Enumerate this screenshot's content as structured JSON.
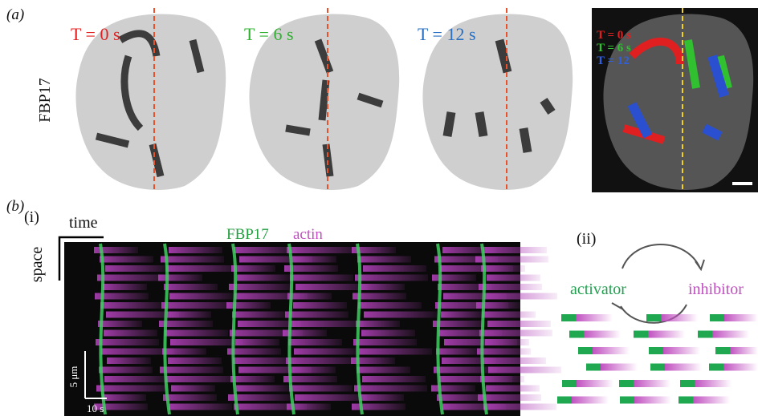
{
  "panel_a": {
    "label": "(a)",
    "row_label": "FBP17",
    "frames": [
      "T = 0 s",
      "T = 6 s",
      "T = 12 s"
    ],
    "merged": [
      "T = 0 s",
      "T = 6 s",
      "T = 12"
    ]
  },
  "panel_b": {
    "label": "(b)",
    "i": {
      "label": "(i)",
      "time": "time",
      "space": "space",
      "legend": [
        "FBP17",
        "actin"
      ],
      "scale_space": "5 μm",
      "scale_time": "10 s"
    },
    "ii": {
      "label": "(ii)",
      "activator": "activator",
      "inhibitor": "inhibitor"
    }
  }
}
